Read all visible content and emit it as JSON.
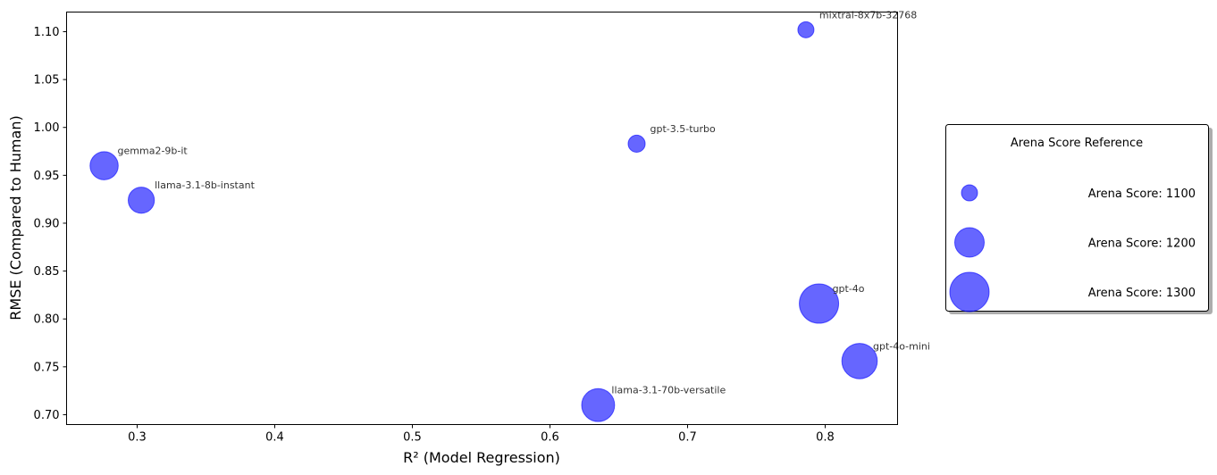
{
  "chart_data": {
    "type": "scatter",
    "title": "",
    "xlabel": "R² (Model Regression)",
    "ylabel": "RMSE (Compared to Human)",
    "xlim": [
      0.2487,
      0.8526
    ],
    "ylim": [
      0.6897,
      1.1205
    ],
    "xticks": [
      0.3,
      0.4,
      0.5,
      0.6,
      0.7,
      0.8
    ],
    "xtick_labels": [
      "0.3",
      "0.4",
      "0.5",
      "0.6",
      "0.7",
      "0.8"
    ],
    "yticks": [
      0.7,
      0.75,
      0.8,
      0.85,
      0.9,
      0.95,
      1.0,
      1.05,
      1.1
    ],
    "ytick_labels": [
      "0.70",
      "0.75",
      "0.80",
      "0.85",
      "0.90",
      "0.95",
      "1.00",
      "1.05",
      "1.10"
    ],
    "grid": false,
    "marker_color": "#0000ff",
    "marker_alpha": 0.6,
    "points": [
      {
        "label": "mixtral-8x7b-32768",
        "x": 0.786,
        "y": 1.102,
        "arena_score": 1100
      },
      {
        "label": "gpt-3.5-turbo",
        "x": 0.663,
        "y": 0.983,
        "arena_score": 1107
      },
      {
        "label": "gemma2-9b-it",
        "x": 0.276,
        "y": 0.96,
        "arena_score": 1190
      },
      {
        "label": "llama-3.1-8b-instant",
        "x": 0.303,
        "y": 0.924,
        "arena_score": 1175
      },
      {
        "label": "gpt-4o",
        "x": 0.7955,
        "y": 0.816,
        "arena_score": 1300
      },
      {
        "label": "gpt-4o-mini",
        "x": 0.825,
        "y": 0.756,
        "arena_score": 1260
      },
      {
        "label": "llama-3.1-70b-versatile",
        "x": 0.635,
        "y": 0.71,
        "arena_score": 1235
      }
    ],
    "legend": {
      "title": "Arena Score Reference",
      "placement": "right",
      "entries": [
        {
          "label": "Arena Score: 1100",
          "score": 1100
        },
        {
          "label": "Arena Score: 1200",
          "score": 1200
        },
        {
          "label": "Arena Score: 1300",
          "score": 1300
        }
      ]
    }
  }
}
